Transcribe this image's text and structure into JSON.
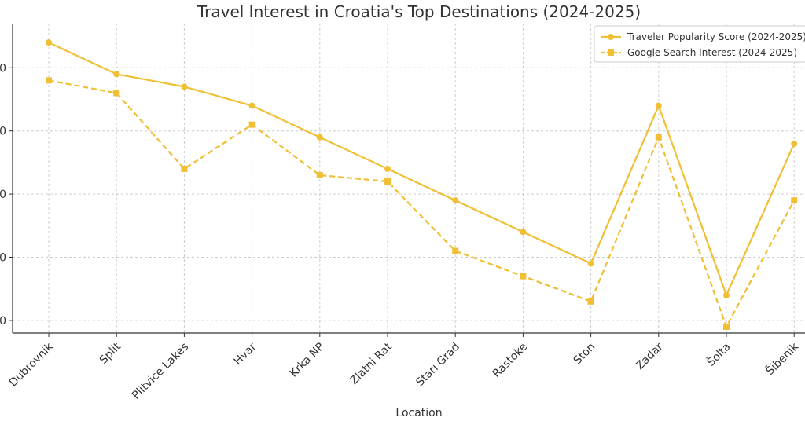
{
  "chart_data": {
    "type": "line",
    "title": "Travel Interest in Croatia's Top Destinations (2024-2025)",
    "xlabel": "Location",
    "ylabel": "",
    "categories": [
      "Dubrovnik",
      "Split",
      "Plitvice Lakes",
      "Hvar",
      "Krka NP",
      "Zlatni Rat",
      "Stari Grad",
      "Rastoke",
      "Ston",
      "Zadar",
      "Šolta",
      "Šibenik"
    ],
    "y_tick_labels": [
      "0",
      "0",
      "0",
      "0",
      "0"
    ],
    "ylim": [
      76,
      100.5
    ],
    "grid": true,
    "legend": "top-right",
    "series": [
      {
        "name": "Traveler Popularity Score (2024-2025)",
        "color": "#f0bf34",
        "style": "solid",
        "marker": "circle",
        "values": [
          99,
          96.5,
          95.5,
          94,
          91.5,
          89,
          86.5,
          84,
          81.5,
          94,
          79,
          91
        ]
      },
      {
        "name": "Google Search Interest (2024-2025)",
        "color": "#f0bf34",
        "style": "dashed",
        "marker": "square",
        "values": [
          96,
          95,
          89,
          92.5,
          88.5,
          88,
          82.5,
          80.5,
          78.5,
          91.5,
          76.5,
          86.5
        ]
      }
    ]
  }
}
